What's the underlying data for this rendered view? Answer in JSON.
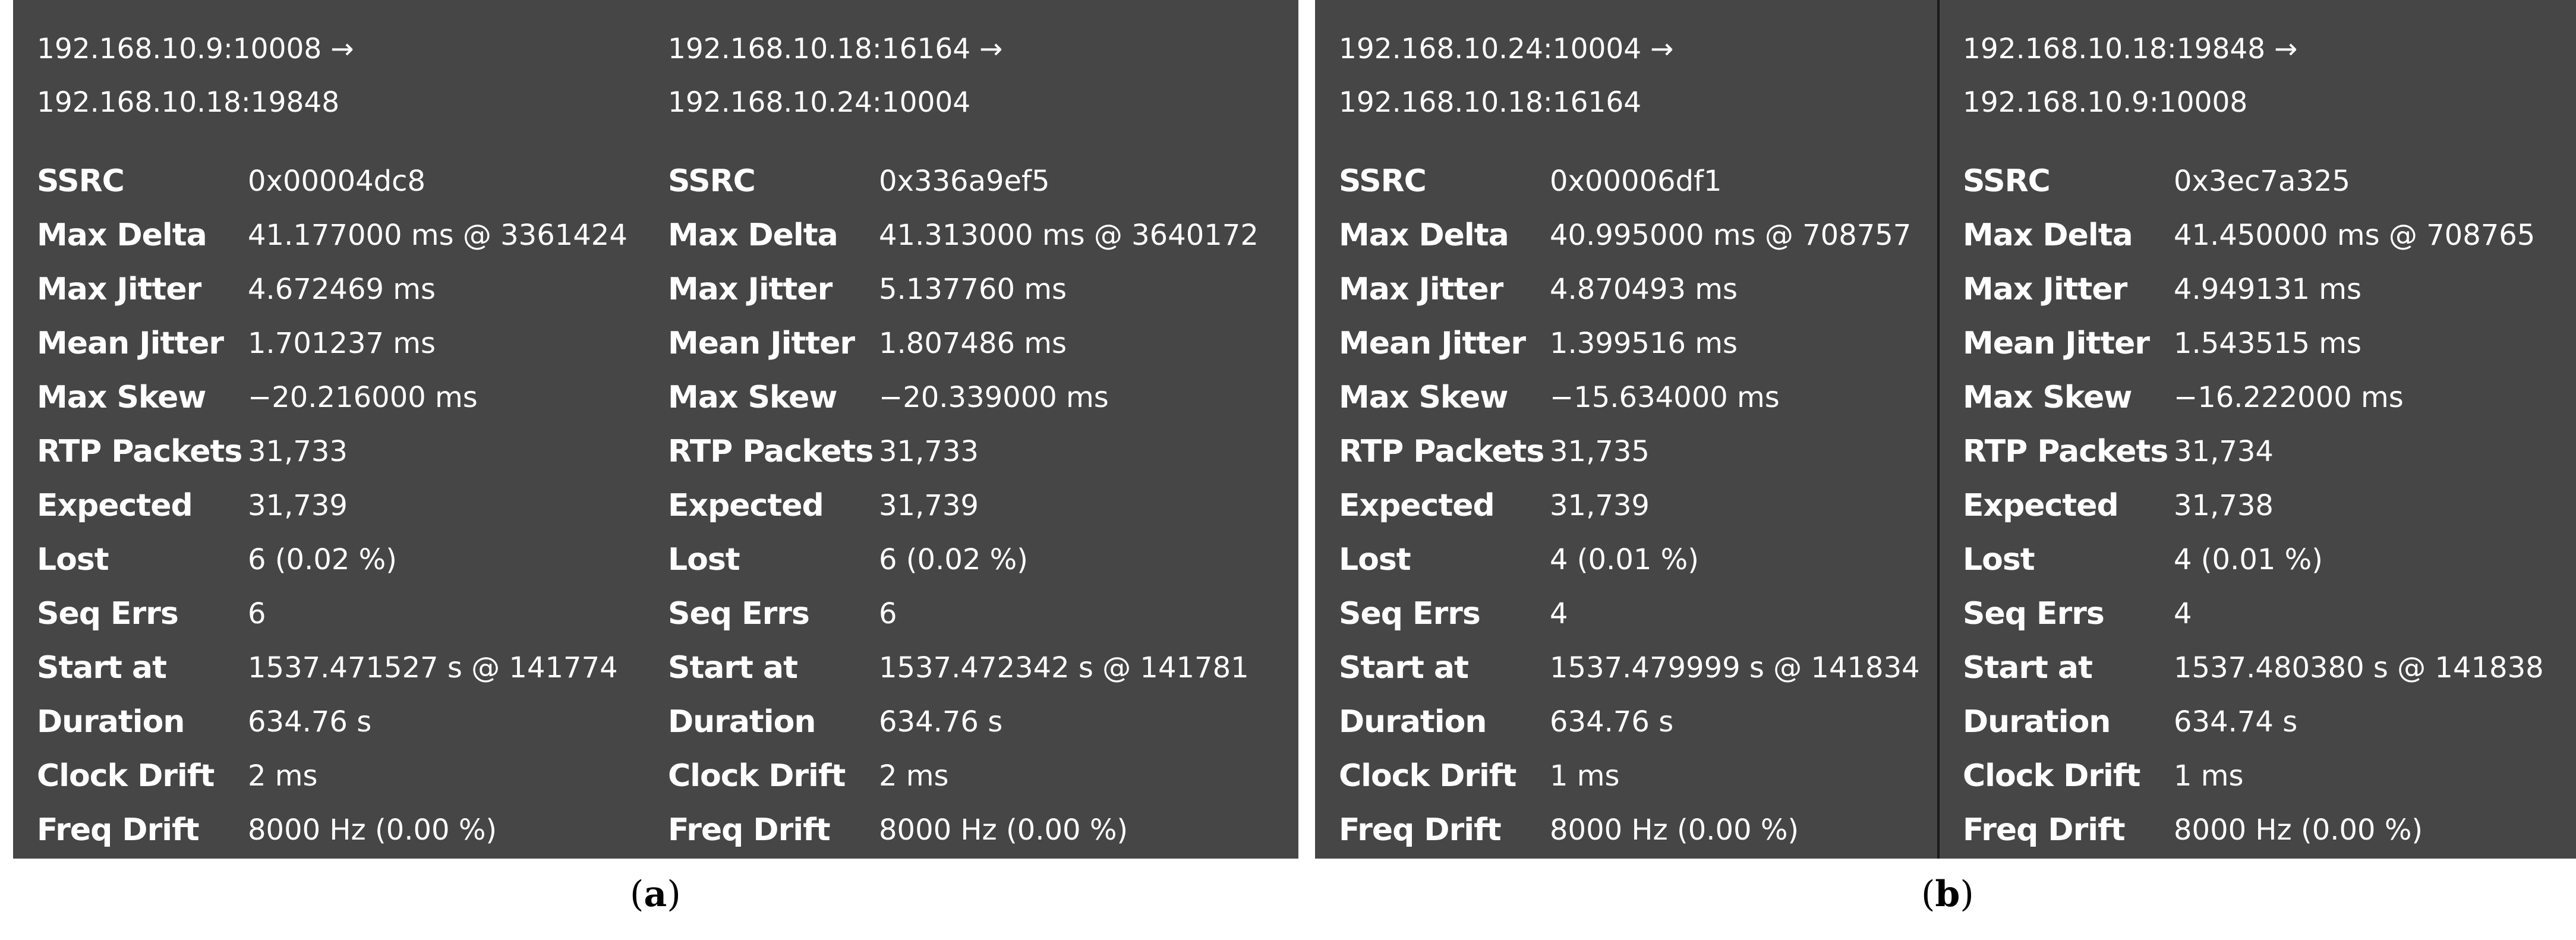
{
  "figures": [
    {
      "caption": {
        "open": "(",
        "letter": "a",
        "close": ")"
      },
      "streams": [
        {
          "source": "192.168.10.9:10008 →",
          "destination": "192.168.10.18:19848",
          "stats": [
            {
              "label": "SSRC",
              "value": "0x00004dc8"
            },
            {
              "label": "Max Delta",
              "value": "41.177000 ms @ 3361424"
            },
            {
              "label": "Max Jitter",
              "value": "4.672469 ms"
            },
            {
              "label": "Mean Jitter",
              "value": "1.701237 ms"
            },
            {
              "label": "Max Skew",
              "value": "−20.216000 ms"
            },
            {
              "label": "RTP Packets",
              "value": "31,733"
            },
            {
              "label": "Expected",
              "value": "31,739"
            },
            {
              "label": "Lost",
              "value": "6 (0.02 %)"
            },
            {
              "label": "Seq Errs",
              "value": "6"
            },
            {
              "label": "Start at",
              "value": "1537.471527 s @ 141774"
            },
            {
              "label": "Duration",
              "value": "634.76 s"
            },
            {
              "label": "Clock Drift",
              "value": "2 ms"
            },
            {
              "label": "Freq Drift",
              "value": "8000 Hz (0.00 %)"
            }
          ]
        },
        {
          "source": "192.168.10.18:16164 →",
          "destination": "192.168.10.24:10004",
          "stats": [
            {
              "label": "SSRC",
              "value": "0x336a9ef5"
            },
            {
              "label": "Max Delta",
              "value": "41.313000 ms @ 3640172"
            },
            {
              "label": "Max Jitter",
              "value": "5.137760 ms"
            },
            {
              "label": "Mean Jitter",
              "value": "1.807486 ms"
            },
            {
              "label": "Max Skew",
              "value": "−20.339000 ms"
            },
            {
              "label": "RTP Packets",
              "value": "31,733"
            },
            {
              "label": "Expected",
              "value": "31,739"
            },
            {
              "label": "Lost",
              "value": "6 (0.02 %)"
            },
            {
              "label": "Seq Errs",
              "value": "6"
            },
            {
              "label": "Start at",
              "value": "1537.472342 s @ 141781"
            },
            {
              "label": "Duration",
              "value": "634.76 s"
            },
            {
              "label": "Clock Drift",
              "value": "2 ms"
            },
            {
              "label": "Freq Drift",
              "value": "8000 Hz (0.00 %)"
            }
          ]
        }
      ]
    },
    {
      "caption": {
        "open": "(",
        "letter": "b",
        "close": ")"
      },
      "streams": [
        {
          "source": "192.168.10.24:10004 →",
          "destination": "192.168.10.18:16164",
          "stats": [
            {
              "label": "SSRC",
              "value": "0x00006df1"
            },
            {
              "label": "Max Delta",
              "value": "40.995000 ms @ 708757"
            },
            {
              "label": "Max Jitter",
              "value": "4.870493 ms"
            },
            {
              "label": "Mean Jitter",
              "value": "1.399516 ms"
            },
            {
              "label": "Max Skew",
              "value": "−15.634000 ms"
            },
            {
              "label": "RTP Packets",
              "value": "31,735"
            },
            {
              "label": "Expected",
              "value": "31,739"
            },
            {
              "label": "Lost",
              "value": "4 (0.01 %)"
            },
            {
              "label": "Seq Errs",
              "value": "4"
            },
            {
              "label": "Start at",
              "value": "1537.479999 s @ 141834"
            },
            {
              "label": "Duration",
              "value": "634.76 s"
            },
            {
              "label": "Clock Drift",
              "value": "1 ms"
            },
            {
              "label": "Freq Drift",
              "value": "8000 Hz (0.00 %)"
            }
          ]
        },
        {
          "source": "192.168.10.18:19848 →",
          "destination": "192.168.10.9:10008",
          "stats": [
            {
              "label": "SSRC",
              "value": "0x3ec7a325"
            },
            {
              "label": "Max Delta",
              "value": "41.450000 ms @ 708765"
            },
            {
              "label": "Max Jitter",
              "value": "4.949131 ms"
            },
            {
              "label": "Mean Jitter",
              "value": "1.543515 ms"
            },
            {
              "label": "Max Skew",
              "value": "−16.222000 ms"
            },
            {
              "label": "RTP Packets",
              "value": "31,734"
            },
            {
              "label": "Expected",
              "value": "31,738"
            },
            {
              "label": "Lost",
              "value": "4 (0.01 %)"
            },
            {
              "label": "Seq Errs",
              "value": "4"
            },
            {
              "label": "Start at",
              "value": "1537.480380 s @ 141838"
            },
            {
              "label": "Duration",
              "value": "634.74 s"
            },
            {
              "label": "Clock Drift",
              "value": "1 ms"
            },
            {
              "label": "Freq Drift",
              "value": "8000 Hz (0.00 %)"
            }
          ]
        }
      ]
    }
  ],
  "colors": {
    "panel_background": "#464646",
    "panel_text": "#ffffff",
    "divider": "#1a1a1a",
    "page_background": "#ffffff"
  }
}
